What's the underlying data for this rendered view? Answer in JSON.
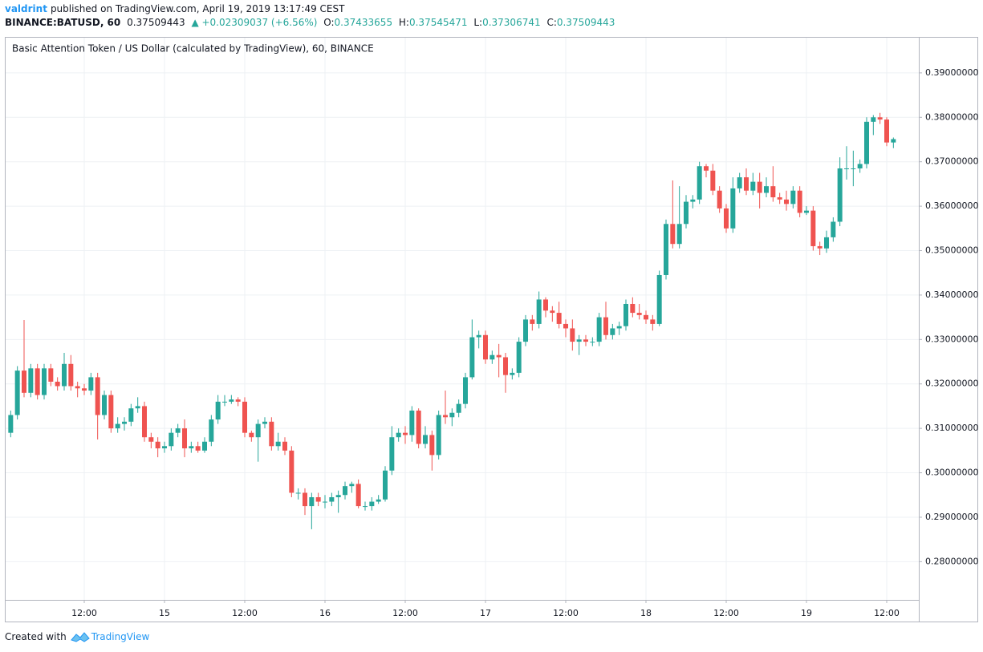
{
  "header": {
    "author": "valdrint",
    "published": "published on TradingView.com, April 19, 2019 13:17:49 CEST"
  },
  "quote": {
    "symbol": "BINANCE:BATUSD, 60",
    "last": "0.37509443",
    "change": "▲ +0.02309037 (+6.56%)",
    "o_label": "O:",
    "o": "0.37433655",
    "h_label": "H:",
    "h": "0.37545471",
    "l_label": "L:",
    "l": "0.37306741",
    "c_label": "C:",
    "c": "0.37509443"
  },
  "footer": {
    "text": "Created with",
    "brand": "TradingView"
  },
  "chart_data": {
    "type": "candlestick",
    "title": "Basic Attention Token / US Dollar (calculated by TradingView), 60, BINANCE",
    "up_color": "#26a69a",
    "down_color": "#ef5350",
    "grid": true,
    "categories": [
      null,
      null,
      null,
      null,
      null,
      null,
      null,
      null,
      null,
      null,
      null,
      "12:00",
      null,
      null,
      null,
      null,
      null,
      null,
      null,
      null,
      null,
      null,
      null,
      "15",
      null,
      null,
      null,
      null,
      null,
      null,
      null,
      null,
      null,
      null,
      null,
      "12:00",
      null,
      null,
      null,
      null,
      null,
      null,
      null,
      null,
      null,
      null,
      null,
      "16",
      null,
      null,
      null,
      null,
      null,
      null,
      null,
      null,
      null,
      null,
      null,
      "12:00",
      null,
      null,
      null,
      null,
      null,
      null,
      null,
      null,
      null,
      null,
      null,
      "17",
      null,
      null,
      null,
      null,
      null,
      null,
      null,
      null,
      null,
      null,
      null,
      "12:00",
      null,
      null,
      null,
      null,
      null,
      null,
      null,
      null,
      null,
      null,
      null,
      "18",
      null,
      null,
      null,
      null,
      null,
      null,
      null,
      null,
      null,
      null,
      null,
      "12:00",
      null,
      null,
      null,
      null,
      null,
      null,
      null,
      null,
      null,
      null,
      null,
      "19",
      null,
      null,
      null,
      null,
      null,
      null,
      null,
      null,
      null,
      null,
      null,
      "12:00",
      null
    ],
    "open": [
      0.309,
      0.313,
      0.323,
      0.318,
      0.3235,
      0.3175,
      0.3235,
      0.3205,
      0.3195,
      0.3245,
      0.3195,
      0.319,
      0.3185,
      0.3215,
      0.313,
      0.3175,
      0.31,
      0.311,
      0.3115,
      0.3145,
      0.315,
      0.308,
      0.307,
      0.3055,
      0.306,
      0.309,
      0.31,
      0.3055,
      0.306,
      0.305,
      0.307,
      0.312,
      0.316,
      0.316,
      0.3165,
      0.316,
      0.309,
      0.308,
      0.311,
      0.3115,
      0.306,
      0.307,
      0.305,
      0.2955,
      0.2955,
      0.2925,
      0.2945,
      0.2935,
      0.2935,
      0.2945,
      0.295,
      0.297,
      0.2975,
      0.2925,
      0.2925,
      0.2935,
      0.294,
      0.3005,
      0.308,
      0.309,
      0.3085,
      0.314,
      0.3065,
      0.3085,
      0.304,
      0.313,
      0.3125,
      0.3135,
      0.3155,
      0.3215,
      0.3305,
      0.331,
      0.3255,
      0.3265,
      0.326,
      0.322,
      0.3225,
      0.3295,
      0.3345,
      0.3335,
      0.339,
      0.3365,
      0.336,
      0.3335,
      0.3325,
      0.3295,
      0.33,
      0.3295,
      0.3295,
      0.335,
      0.331,
      0.3325,
      0.333,
      0.338,
      0.336,
      0.3355,
      0.3345,
      0.3335,
      0.3445,
      0.356,
      0.3515,
      0.356,
      0.361,
      0.3615,
      0.369,
      0.368,
      0.3635,
      0.3595,
      0.355,
      0.364,
      0.3665,
      0.3635,
      0.3655,
      0.363,
      0.3645,
      0.362,
      0.3615,
      0.3605,
      0.3635,
      0.3585,
      0.359,
      0.351,
      0.3505,
      0.353,
      0.3565,
      0.3685,
      0.3685,
      0.3685,
      0.3695,
      0.379,
      0.38,
      0.3795,
      0.37433655
    ],
    "high": [
      0.314,
      0.324,
      0.3344,
      0.3245,
      0.3245,
      0.3245,
      0.3245,
      0.3215,
      0.327,
      0.3265,
      0.3205,
      0.32,
      0.3225,
      0.3225,
      0.3185,
      0.3185,
      0.3125,
      0.3125,
      0.3155,
      0.317,
      0.316,
      0.309,
      0.308,
      0.307,
      0.31,
      0.311,
      0.312,
      0.307,
      0.307,
      0.308,
      0.313,
      0.3175,
      0.3175,
      0.3175,
      0.317,
      0.317,
      0.3095,
      0.312,
      0.3125,
      0.3125,
      0.309,
      0.308,
      0.306,
      0.2965,
      0.2965,
      0.2955,
      0.2955,
      0.295,
      0.2955,
      0.296,
      0.298,
      0.298,
      0.2985,
      0.2935,
      0.2945,
      0.295,
      0.3015,
      0.3105,
      0.31,
      0.3105,
      0.315,
      0.3145,
      0.3105,
      0.3095,
      0.314,
      0.3185,
      0.3145,
      0.3165,
      0.3225,
      0.3345,
      0.332,
      0.332,
      0.3275,
      0.329,
      0.327,
      0.3235,
      0.3305,
      0.3355,
      0.3355,
      0.3408,
      0.3395,
      0.3375,
      0.3385,
      0.3345,
      0.3345,
      0.331,
      0.331,
      0.3305,
      0.336,
      0.3385,
      0.3335,
      0.334,
      0.339,
      0.3395,
      0.338,
      0.3365,
      0.3355,
      0.3455,
      0.357,
      0.3658,
      0.3645,
      0.3625,
      0.3625,
      0.37,
      0.3695,
      0.3695,
      0.3645,
      0.3605,
      0.3665,
      0.3675,
      0.3685,
      0.3675,
      0.3675,
      0.3665,
      0.369,
      0.363,
      0.3635,
      0.3645,
      0.3645,
      0.36,
      0.36,
      0.352,
      0.3545,
      0.3575,
      0.371,
      0.3735,
      0.3725,
      0.3705,
      0.38,
      0.3805,
      0.381,
      0.38,
      0.37545471
    ],
    "low": [
      0.308,
      0.312,
      0.317,
      0.317,
      0.3165,
      0.3165,
      0.3195,
      0.3185,
      0.3185,
      0.3185,
      0.317,
      0.3175,
      0.3175,
      0.3075,
      0.312,
      0.309,
      0.309,
      0.3095,
      0.3105,
      0.3135,
      0.307,
      0.3055,
      0.3035,
      0.3045,
      0.305,
      0.308,
      0.3035,
      0.3045,
      0.3045,
      0.3045,
      0.306,
      0.311,
      0.315,
      0.3155,
      0.315,
      0.308,
      0.307,
      0.3025,
      0.31,
      0.305,
      0.305,
      0.304,
      0.2945,
      0.294,
      0.2905,
      0.2873,
      0.2925,
      0.292,
      0.2925,
      0.291,
      0.294,
      0.2955,
      0.292,
      0.2915,
      0.2915,
      0.293,
      0.2935,
      0.2995,
      0.307,
      0.3065,
      0.307,
      0.3055,
      0.3055,
      0.3005,
      0.303,
      0.311,
      0.3105,
      0.3125,
      0.3145,
      0.321,
      0.328,
      0.3245,
      0.3245,
      0.3215,
      0.318,
      0.321,
      0.3215,
      0.3285,
      0.332,
      0.3325,
      0.335,
      0.334,
      0.3325,
      0.3305,
      0.3275,
      0.3265,
      0.3285,
      0.3285,
      0.3285,
      0.33,
      0.33,
      0.331,
      0.332,
      0.335,
      0.3345,
      0.3335,
      0.332,
      0.333,
      0.3435,
      0.3505,
      0.3505,
      0.355,
      0.3595,
      0.3605,
      0.3665,
      0.3625,
      0.3585,
      0.354,
      0.354,
      0.363,
      0.3625,
      0.3625,
      0.3595,
      0.362,
      0.361,
      0.3605,
      0.359,
      0.3595,
      0.3575,
      0.358,
      0.35,
      0.349,
      0.3495,
      0.352,
      0.3555,
      0.366,
      0.3645,
      0.3675,
      0.3685,
      0.376,
      0.3785,
      0.3735,
      0.37306741
    ],
    "close": [
      0.313,
      0.323,
      0.318,
      0.3235,
      0.3175,
      0.3235,
      0.3205,
      0.3195,
      0.3245,
      0.3195,
      0.319,
      0.3185,
      0.3215,
      0.313,
      0.3175,
      0.31,
      0.311,
      0.3115,
      0.3145,
      0.315,
      0.308,
      0.307,
      0.3055,
      0.306,
      0.309,
      0.31,
      0.3055,
      0.306,
      0.305,
      0.307,
      0.312,
      0.316,
      0.316,
      0.3165,
      0.316,
      0.309,
      0.308,
      0.311,
      0.3115,
      0.306,
      0.307,
      0.305,
      0.2955,
      0.2955,
      0.2925,
      0.2945,
      0.2935,
      0.2935,
      0.2945,
      0.295,
      0.297,
      0.2975,
      0.2925,
      0.2925,
      0.2935,
      0.294,
      0.3005,
      0.308,
      0.309,
      0.3085,
      0.314,
      0.3065,
      0.3085,
      0.304,
      0.313,
      0.3125,
      0.3135,
      0.3155,
      0.3215,
      0.3305,
      0.331,
      0.3255,
      0.3265,
      0.326,
      0.322,
      0.3225,
      0.3295,
      0.3345,
      0.3335,
      0.339,
      0.3365,
      0.336,
      0.3335,
      0.3325,
      0.3295,
      0.33,
      0.3295,
      0.3295,
      0.335,
      0.331,
      0.3325,
      0.333,
      0.338,
      0.336,
      0.3355,
      0.3345,
      0.3335,
      0.3445,
      0.356,
      0.3515,
      0.356,
      0.361,
      0.3615,
      0.369,
      0.368,
      0.3635,
      0.3595,
      0.355,
      0.364,
      0.3665,
      0.3635,
      0.3655,
      0.363,
      0.3645,
      0.362,
      0.3615,
      0.3605,
      0.3635,
      0.3585,
      0.359,
      0.351,
      0.3505,
      0.353,
      0.3565,
      0.3685,
      0.3685,
      0.3685,
      0.3695,
      0.379,
      0.38,
      0.3795,
      0.37433655,
      0.37509443
    ],
    "ylim": [
      0.2714,
      0.3981
    ],
    "yticks": [
      {
        "value": 0.28,
        "label": "0.28000000"
      },
      {
        "value": 0.29,
        "label": "0.29000000"
      },
      {
        "value": 0.3,
        "label": "0.30000000"
      },
      {
        "value": 0.31,
        "label": "0.31000000"
      },
      {
        "value": 0.32,
        "label": "0.32000000"
      },
      {
        "value": 0.33,
        "label": "0.33000000"
      },
      {
        "value": 0.34,
        "label": "0.34000000"
      },
      {
        "value": 0.35,
        "label": "0.35000000"
      },
      {
        "value": 0.36,
        "label": "0.36000000"
      },
      {
        "value": 0.37,
        "label": "0.37000000"
      },
      {
        "value": 0.38,
        "label": "0.38000000"
      },
      {
        "value": 0.39,
        "label": "0.39000000"
      }
    ]
  }
}
